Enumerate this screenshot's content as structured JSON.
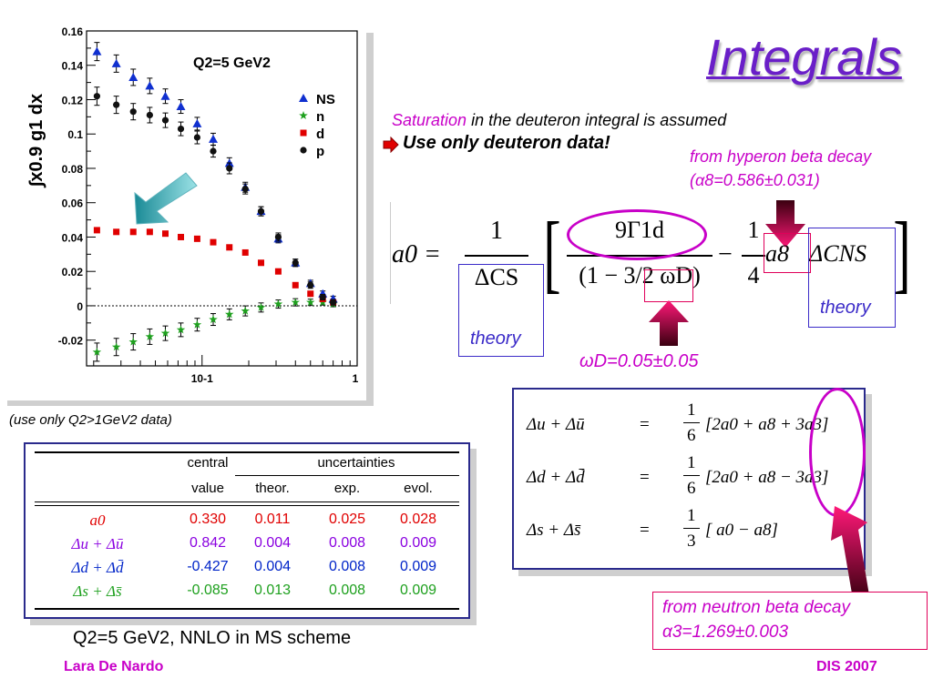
{
  "slide": {
    "title": "Integrals",
    "saturation_word": "Saturation",
    "saturation_rest": " in the deuteron integral is assumed",
    "use_only": "Use only deuteron data!",
    "hyperon_line1": "from hyperon beta decay",
    "hyperon_line2": "(α8=0.586±0.031)",
    "neutron_line1": "from neutron beta decay",
    "neutron_line2": "α3=1.269±0.003",
    "theory_label": "theory",
    "omega_value": "ωD=0.05±0.05",
    "data_note": "(use only Q2>1GeV2 data)",
    "scheme_note": "Q2=5 GeV2, NNLO in MS scheme",
    "author": "Lara De Nardo",
    "conference": "DIS 2007"
  },
  "equation": {
    "lhs": "a0 =",
    "frac1_num": "1",
    "frac1_den": "ΔCS",
    "frac2_num": "9Γ1d",
    "frac2_den": "(1 − 3/2 ωD)",
    "minus": "−",
    "frac3_num": "1",
    "frac3_den": "4",
    "a8": "a8",
    "dcns": "ΔCNS"
  },
  "flavour_eqs": [
    {
      "lhs": "Δu + Δū",
      "eq": "=",
      "coef_num": "1",
      "coef_den": "6",
      "rhs": "[2a0 + a8 + 3a3]"
    },
    {
      "lhs": "Δd + Δd̄",
      "eq": "=",
      "coef_num": "1",
      "coef_den": "6",
      "rhs": "[2a0 + a8 − 3a3]"
    },
    {
      "lhs": "Δs + Δs̄",
      "eq": "=",
      "coef_num": "1",
      "coef_den": "3",
      "rhs": "[ a0 − a8]"
    }
  ],
  "results_table": {
    "headers": {
      "central": "central",
      "value": "value",
      "uncertainties": "uncertainties",
      "theor": "theor.",
      "exp": "exp.",
      "evol": "evol."
    },
    "rows": [
      {
        "label": "a0",
        "central": "0.330",
        "theor": "0.011",
        "exp": "0.025",
        "evol": "0.028",
        "color": "#e00000"
      },
      {
        "label": "Δu + Δū",
        "central": "0.842",
        "theor": "0.004",
        "exp": "0.008",
        "evol": "0.009",
        "color": "#8a00e0"
      },
      {
        "label": "Δd + Δd̄",
        "central": "-0.427",
        "theor": "0.004",
        "exp": "0.008",
        "evol": "0.009",
        "color": "#0024c8"
      },
      {
        "label": "Δs + Δs̄",
        "central": "-0.085",
        "theor": "0.013",
        "exp": "0.008",
        "evol": "0.009",
        "color": "#1ea01e"
      }
    ]
  },
  "chart_data": {
    "type": "scatter",
    "title": "Q2=5 GeV2",
    "ylabel": "∫x0.9 g1 dx",
    "xlabel": "",
    "xscale": "log",
    "xlim": [
      0.018,
      1
    ],
    "ylim": [
      -0.035,
      0.16
    ],
    "yticks": [
      "0.16",
      "0.14",
      "0.12",
      "0.1",
      "0.08",
      "0.06",
      "0.04",
      "0.02",
      "0",
      "-0.02"
    ],
    "xticks": [
      "10-1",
      "1"
    ],
    "legend_position": "top-right",
    "series": [
      {
        "name": "NS",
        "marker": "triangle",
        "color": "#1030d0",
        "x": [
          0.021,
          0.028,
          0.036,
          0.046,
          0.058,
          0.073,
          0.093,
          0.118,
          0.15,
          0.19,
          0.24,
          0.31,
          0.4,
          0.5,
          0.6,
          0.7
        ],
        "y": [
          0.148,
          0.141,
          0.133,
          0.128,
          0.122,
          0.116,
          0.106,
          0.097,
          0.083,
          0.069,
          0.055,
          0.039,
          0.025,
          0.013,
          0.007,
          0.004
        ]
      },
      {
        "name": "n",
        "marker": "star",
        "color": "#1ea01e",
        "x": [
          0.021,
          0.028,
          0.036,
          0.046,
          0.058,
          0.073,
          0.093,
          0.118,
          0.15,
          0.19,
          0.24,
          0.31,
          0.4,
          0.5,
          0.6,
          0.7
        ],
        "y": [
          -0.027,
          -0.024,
          -0.021,
          -0.018,
          -0.016,
          -0.014,
          -0.011,
          -0.008,
          -0.005,
          -0.003,
          -0.001,
          0.001,
          0.002,
          0.002,
          0.002,
          0.001
        ]
      },
      {
        "name": "d",
        "marker": "square",
        "color": "#e00000",
        "x": [
          0.021,
          0.028,
          0.036,
          0.046,
          0.058,
          0.073,
          0.093,
          0.118,
          0.15,
          0.19,
          0.24,
          0.31,
          0.4,
          0.5,
          0.6,
          0.7
        ],
        "y": [
          0.044,
          0.043,
          0.043,
          0.043,
          0.042,
          0.04,
          0.039,
          0.037,
          0.034,
          0.031,
          0.025,
          0.02,
          0.012,
          0.007,
          0.004,
          0.002
        ]
      },
      {
        "name": "p",
        "marker": "circle",
        "color": "#111111",
        "x": [
          0.021,
          0.028,
          0.036,
          0.046,
          0.058,
          0.073,
          0.093,
          0.118,
          0.15,
          0.19,
          0.24,
          0.31,
          0.4,
          0.5,
          0.6,
          0.7
        ],
        "y": [
          0.122,
          0.117,
          0.113,
          0.111,
          0.108,
          0.103,
          0.098,
          0.09,
          0.08,
          0.068,
          0.055,
          0.04,
          0.025,
          0.012,
          0.005,
          0.002
        ]
      }
    ]
  },
  "colors": {
    "title": "#6a1fc8",
    "magenta": "#c800c8",
    "arrow": "#e0005a",
    "theory_border": "#3a2ac8",
    "table_border": "#2a2a8c"
  },
  "icons": {
    "bullet": "red-arrow-bullet-icon",
    "arrow_hyperon": "pink-down-arrow-icon",
    "arrow_omega": "pink-up-arrow-icon",
    "arrow_neutron": "pink-diagonal-arrow-icon",
    "arrow_plot": "teal-arrow-icon"
  }
}
